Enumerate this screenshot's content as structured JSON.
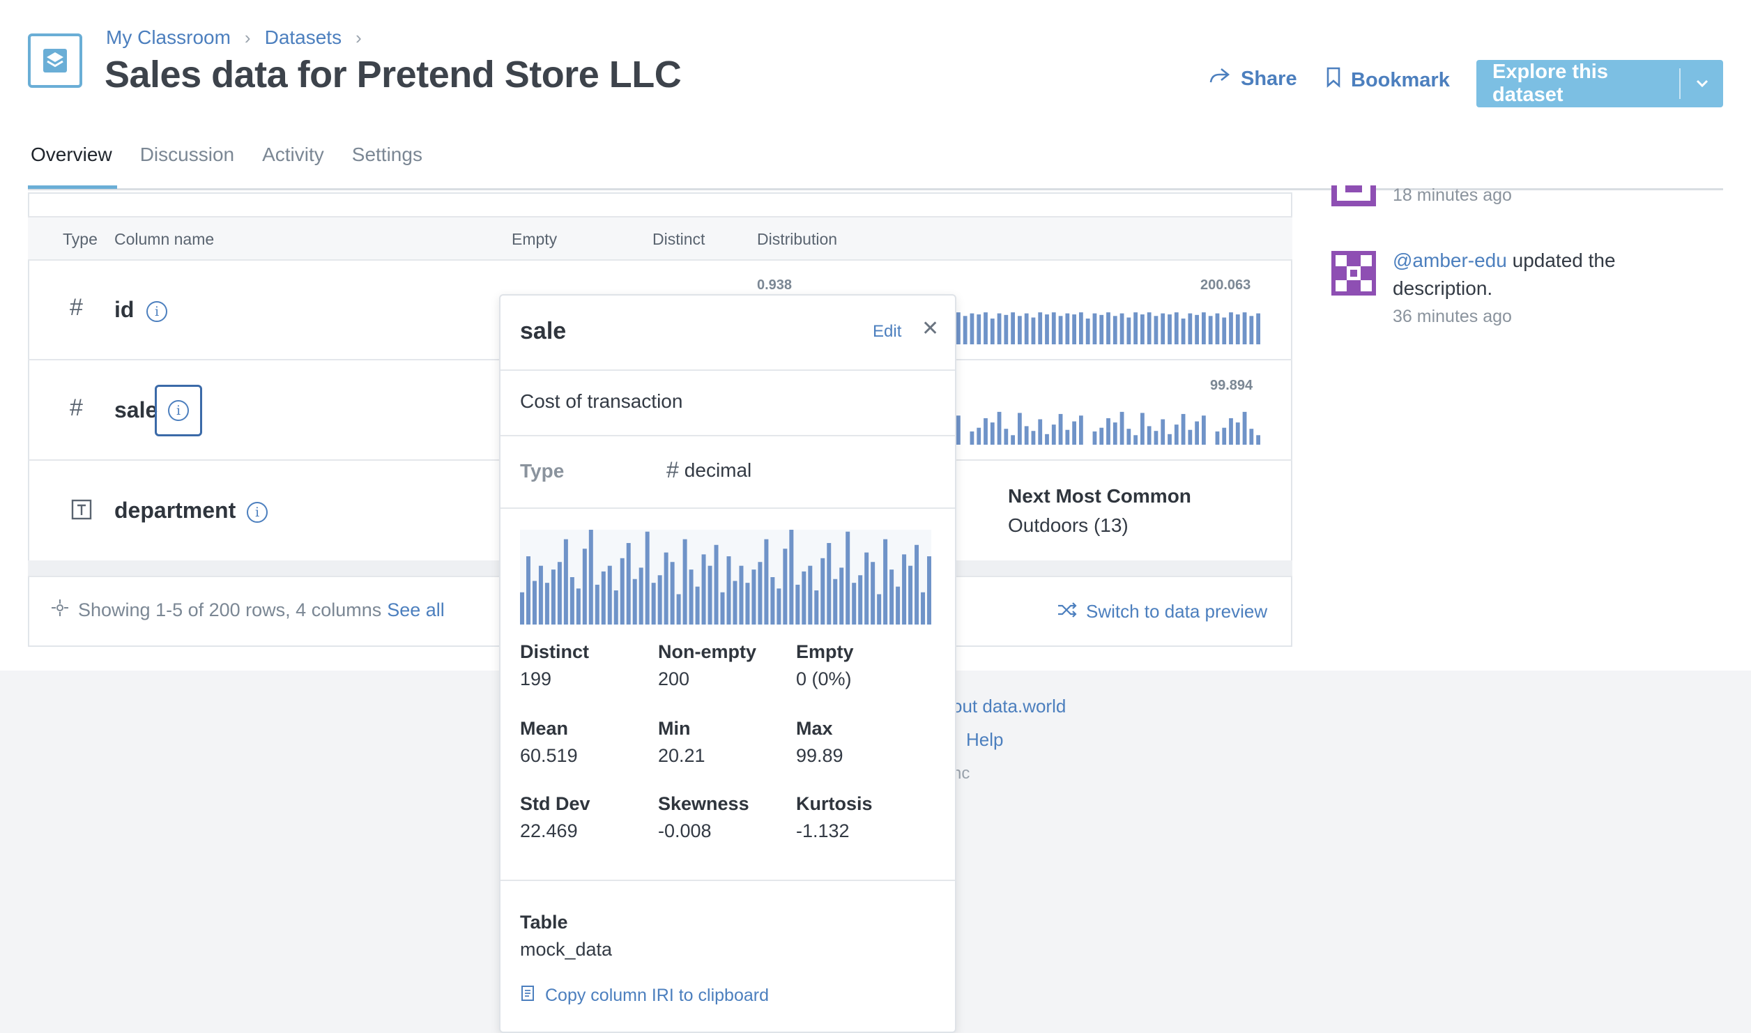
{
  "breadcrumb": [
    "My Classroom",
    "Datasets"
  ],
  "page_title": "Sales data for Pretend Store LLC",
  "header_actions": {
    "share": "Share",
    "bookmark": "Bookmark",
    "explore": "Explore this dataset"
  },
  "tabs": [
    "Overview",
    "Discussion",
    "Activity",
    "Settings"
  ],
  "table": {
    "headers": [
      "Type",
      "Column name",
      "Empty",
      "Distinct",
      "Distribution"
    ],
    "rows": [
      {
        "type_icon": "#",
        "name": "id",
        "dist_min": "0.938",
        "dist_max": "200.063"
      },
      {
        "type_icon": "#",
        "name": "sale",
        "dist_max": "99.894"
      },
      {
        "type_icon": "text-type-icon",
        "name": "department",
        "next_common_label": "Next Most Common",
        "next_common_value": "Outdoors (13)"
      }
    ],
    "footer": {
      "showing": "Showing 1-5 of 200 rows, 4 columns",
      "see_all": "See all",
      "switch_preview": "Switch to data preview"
    }
  },
  "activity": [
    {
      "time": "18 minutes ago"
    },
    {
      "user": "@amber-edu",
      "action": "updated the description.",
      "time": "36 minutes ago"
    }
  ],
  "footer_links": [
    "out data.world",
    "Help",
    "nc"
  ],
  "popover": {
    "title": "sale",
    "edit": "Edit",
    "description": "Cost of transaction",
    "type_label": "Type",
    "type_value": "decimal",
    "stats": [
      {
        "label": "Distinct",
        "value": "199"
      },
      {
        "label": "Non-empty",
        "value": "200"
      },
      {
        "label": "Empty",
        "value": "0 (0%)"
      },
      {
        "label": "Mean",
        "value": "60.519"
      },
      {
        "label": "Min",
        "value": "20.21"
      },
      {
        "label": "Max",
        "value": "99.89"
      },
      {
        "label": "Std Dev",
        "value": "22.469"
      },
      {
        "label": "Skewness",
        "value": "-0.008"
      },
      {
        "label": "Kurtosis",
        "value": "-1.132"
      }
    ],
    "table_label": "Table",
    "table_value": "mock_data",
    "copy_iri": "Copy column IRI to clipboard"
  },
  "colors": {
    "accent": "#4c7fbe",
    "bar": "#6f93c8",
    "explore_button": "#7cbfe3",
    "avatar": "#8e4fb3"
  }
}
